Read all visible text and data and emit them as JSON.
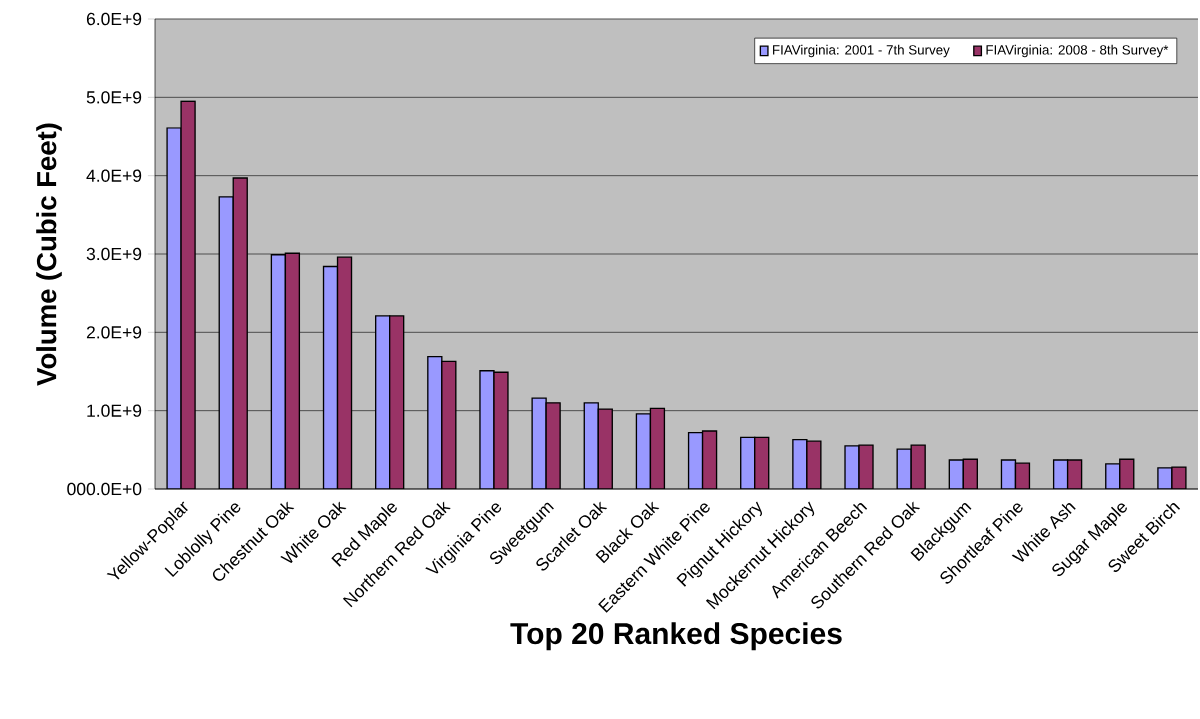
{
  "chart_data": {
    "type": "bar",
    "xlabel": "Top 20 Ranked Species",
    "ylabel": "Volume (Cubic Feet)",
    "categories": [
      "Yellow-Poplar",
      "Loblolly Pine",
      "Chestnut Oak",
      "White Oak",
      "Red Maple",
      "Northern Red Oak",
      "Virginia Pine",
      "Sweetgum",
      "Scarlet Oak",
      "Black Oak",
      "Eastern White Pine",
      "Pignut Hickory",
      "Mockernut Hickory",
      "American Beech",
      "Southern Red Oak",
      "Blackgum",
      "Shortleaf Pine",
      "White Ash",
      "Sugar Maple",
      "Sweet Birch"
    ],
    "series": [
      {
        "name": "FIAVirginia: 2001 - 7th Survey",
        "color": "#9999ff",
        "values": [
          4610000000.0,
          3730000000.0,
          2990000000.0,
          2840000000.0,
          2210000000.0,
          1690000000.0,
          1510000000.0,
          1160000000.0,
          1100000000.0,
          960000000.0,
          720000000.0,
          660000000.0,
          630000000.0,
          550000000.0,
          510000000.0,
          370000000.0,
          370000000.0,
          370000000.0,
          320000000.0,
          270000000.0
        ]
      },
      {
        "name": "FIAVirginia: 2008 - 8th Survey*",
        "color": "#993366",
        "values": [
          4950000000.0,
          3970000000.0,
          3010000000.0,
          2960000000.0,
          2210000000.0,
          1630000000.0,
          1490000000.0,
          1100000000.0,
          1020000000.0,
          1030000000.0,
          740000000.0,
          660000000.0,
          610000000.0,
          560000000.0,
          560000000.0,
          380000000.0,
          330000000.0,
          370000000.0,
          380000000.0,
          280000000.0
        ]
      }
    ],
    "ylim": [
      0,
      6000000000.0
    ],
    "yticks": [
      {
        "value": 0,
        "label": "000.0E+0"
      },
      {
        "value": 1000000000.0,
        "label": "1.0E+9"
      },
      {
        "value": 2000000000.0,
        "label": "2.0E+9"
      },
      {
        "value": 3000000000.0,
        "label": "3.0E+9"
      },
      {
        "value": 4000000000.0,
        "label": "4.0E+9"
      },
      {
        "value": 5000000000.0,
        "label": "5.0E+9"
      },
      {
        "value": 6000000000.0,
        "label": "6.0E+9"
      }
    ],
    "grid": "y",
    "legend": "top right"
  }
}
